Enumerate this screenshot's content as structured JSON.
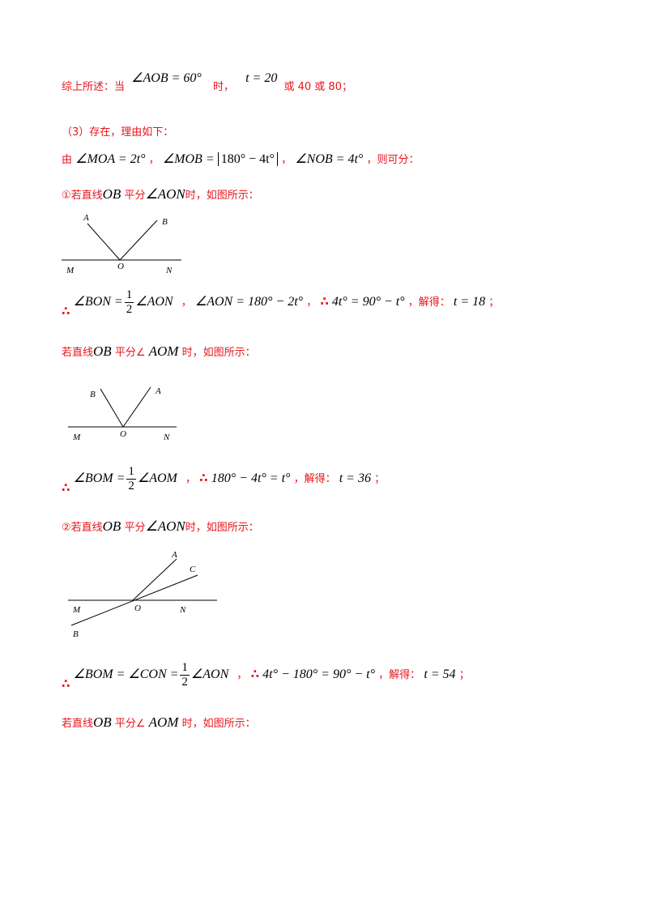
{
  "summary": {
    "prefix": "综上所述：当",
    "expr1": "∠AOB = 60°",
    "when": "时，",
    "expr2": "t = 20",
    "suffix": "或 40 或 80；"
  },
  "part3": {
    "heading": "（3）存在，理由如下：",
    "from": "由",
    "e1": "∠MOA = 2t°",
    "sep": "，",
    "e2_pre": "∠MOB =",
    "e2_abs": "180° − 4t°",
    "e3": "∠NOB = 4t°",
    "tail": "，则可分："
  },
  "case1a": {
    "label_pre": "①若直线",
    "ob": "OB",
    "mid": " 平分",
    "angle": "∠AON",
    "label_post": "时，如图所示：",
    "fig": {
      "A": "A",
      "B": "B",
      "M": "M",
      "O": "O",
      "N": "N"
    },
    "therefore": "∴",
    "eq_left": "∠BON =",
    "num": "1",
    "den": "2",
    "eq_right": "∠AON",
    "comma": "，",
    "eq2": "∠AON = 180° − 2t°",
    "eq3": "4t° = 90° − t°",
    "solve": "，解得：",
    "ans": "t = 18",
    "end": "；"
  },
  "case1b": {
    "label_pre": "若直线",
    "ob": "OB",
    "mid": " 平分∠ ",
    "angle": "AOM",
    "label_post": " 时，如图所示：",
    "fig": {
      "A": "A",
      "B": "B",
      "M": "M",
      "O": "O",
      "N": "N"
    },
    "therefore": "∴",
    "eq_left": "∠BOM =",
    "num": "1",
    "den": "2",
    "eq_right": "∠AOM",
    "eq2": "180° − 4t° = t°",
    "solve": "，解得：",
    "ans": "t = 36",
    "end": "；"
  },
  "case2a": {
    "label_pre": "②若直线",
    "ob": "OB",
    "mid": " 平分",
    "angle": "∠AON",
    "label_post": "时，如图所示：",
    "fig": {
      "A": "A",
      "C": "C",
      "B": "B",
      "M": "M",
      "O": "O",
      "N": "N"
    },
    "therefore": "∴",
    "eq_left": "∠BOM = ∠CON =",
    "num": "1",
    "den": "2",
    "eq_right": "∠AON",
    "eq2": "4t° − 180° = 90° − t°",
    "solve": "，解得：",
    "ans": "t = 54",
    "end": "；"
  },
  "case2b": {
    "label_pre": "若直线",
    "ob": "OB",
    "mid": " 平分∠ ",
    "angle": "AOM",
    "label_post": " 时，如图所示："
  }
}
